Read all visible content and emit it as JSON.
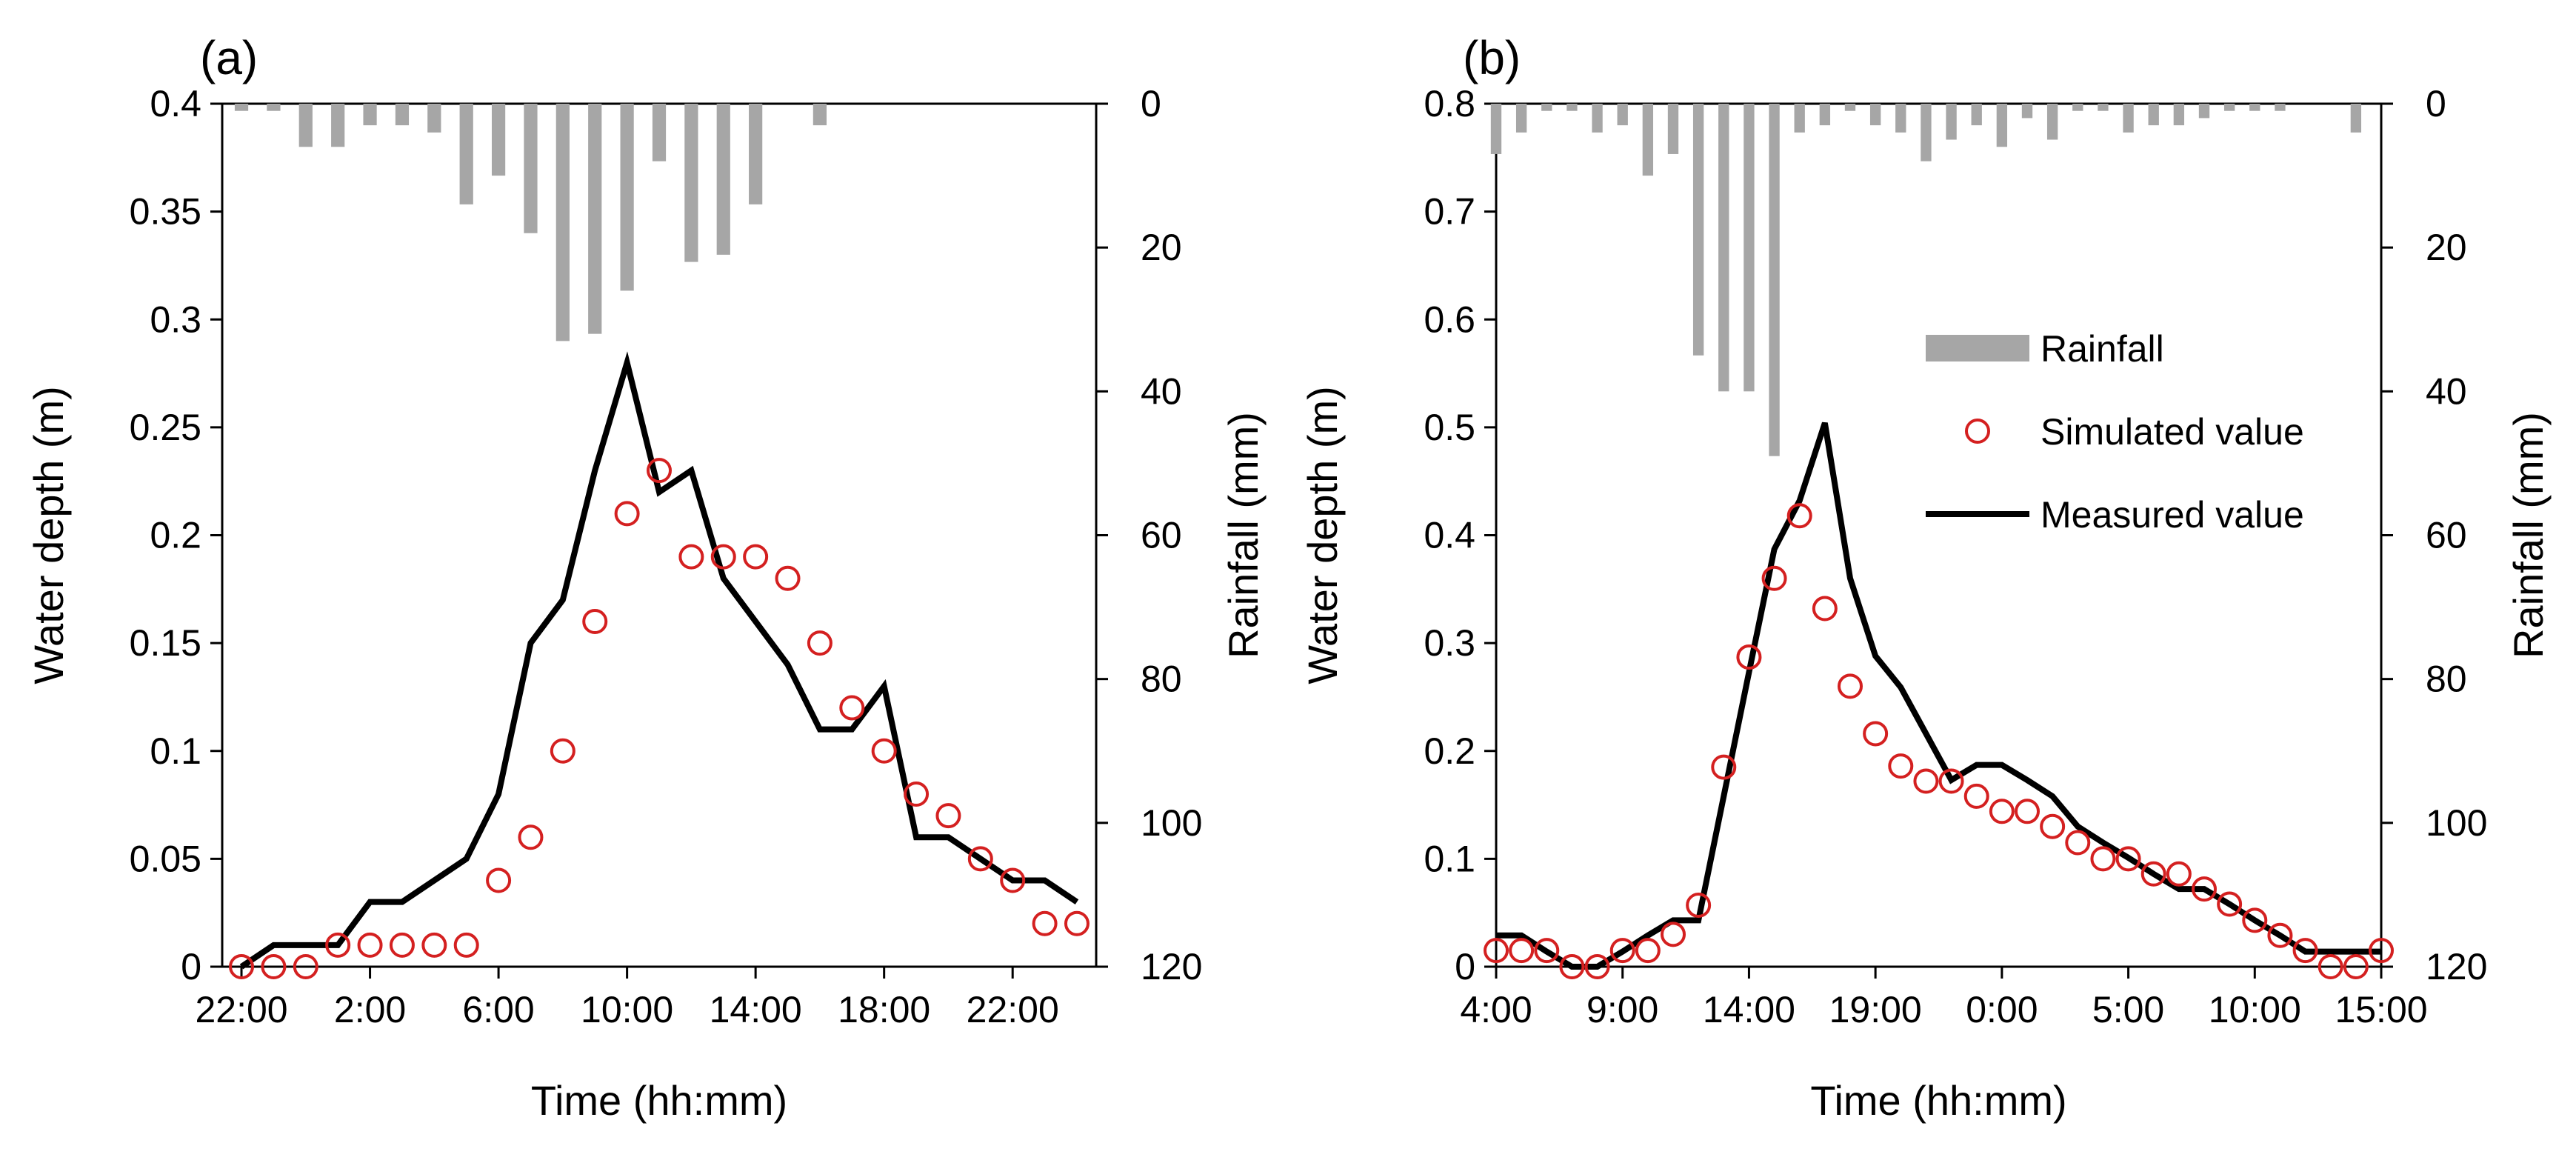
{
  "chart_data": [
    {
      "type": "line",
      "panel_label": "(a)",
      "xlabel": "Time (hh:mm)",
      "ylabel": "Water depth (m)",
      "y2label": "Rainfall (mm)",
      "ylim": [
        0,
        0.4
      ],
      "y2lim": [
        0,
        120
      ],
      "y_ticks": [
        "0",
        "0.05",
        "0.1",
        "0.15",
        "0.2",
        "0.25",
        "0.3",
        "0.35",
        "0.4"
      ],
      "y2_ticks": [
        "0",
        "20",
        "40",
        "60",
        "80",
        "100",
        "120"
      ],
      "x_ticks": [
        "22:00",
        "2:00",
        "6:00",
        "10:00",
        "14:00",
        "18:00",
        "22:00"
      ],
      "x_tick_hours": [
        0,
        4,
        8,
        12,
        16,
        20,
        24
      ],
      "xlim": [
        -0.6,
        26.6
      ],
      "rainfall": {
        "name": "Rainfall",
        "x": [
          0,
          1,
          2,
          3,
          4,
          5,
          6,
          7,
          8,
          9,
          10,
          11,
          12,
          13,
          14,
          15,
          16,
          17,
          18,
          19,
          20,
          21,
          22,
          23,
          24,
          25
        ],
        "values": [
          1,
          1,
          6,
          6,
          3,
          3,
          4,
          14,
          10,
          18,
          33,
          32,
          26,
          8,
          22,
          21,
          14,
          0,
          3,
          0,
          0,
          0,
          0,
          0,
          0,
          0
        ]
      },
      "series": [
        {
          "name": "Simulated value",
          "style": "marker",
          "x": [
            0,
            1,
            2,
            3,
            4,
            5,
            6,
            7,
            8,
            9,
            10,
            11,
            12,
            13,
            14,
            15,
            16,
            17,
            18,
            19,
            20,
            21,
            22,
            23,
            24,
            25,
            26
          ],
          "values": [
            0,
            0,
            0,
            0.01,
            0.01,
            0.01,
            0.01,
            0.01,
            0.04,
            0.06,
            0.1,
            0.16,
            0.21,
            0.23,
            0.19,
            0.19,
            0.19,
            0.18,
            0.15,
            0.12,
            0.1,
            0.08,
            0.07,
            0.05,
            0.04,
            0.02,
            0.02
          ]
        },
        {
          "name": "Measured value",
          "style": "line",
          "x": [
            0,
            1,
            2,
            3,
            4,
            5,
            6,
            7,
            8,
            9,
            10,
            11,
            12,
            13,
            14,
            15,
            16,
            17,
            18,
            19,
            20,
            21,
            22,
            23,
            24,
            25,
            26
          ],
          "values": [
            0,
            0.01,
            0.01,
            0.01,
            0.03,
            0.03,
            0.04,
            0.05,
            0.08,
            0.15,
            0.17,
            0.23,
            0.28,
            0.22,
            0.23,
            0.18,
            0.16,
            0.14,
            0.11,
            0.11,
            0.13,
            0.06,
            0.06,
            0.05,
            0.04,
            0.04,
            0.03
          ]
        }
      ]
    },
    {
      "type": "line",
      "panel_label": "(b)",
      "xlabel": "Time (hh:mm)",
      "ylabel": "Water depth (m)",
      "y2label": "Rainfall (mm)",
      "ylim": [
        0,
        0.8
      ],
      "y2lim": [
        0,
        120
      ],
      "y_ticks": [
        "0",
        "0.1",
        "0.2",
        "0.3",
        "0.4",
        "0.5",
        "0.6",
        "0.7",
        "0.8"
      ],
      "y2_ticks": [
        "0",
        "20",
        "40",
        "60",
        "80",
        "100",
        "120"
      ],
      "x_ticks": [
        "4:00",
        "9:00",
        "14:00",
        "19:00",
        "0:00",
        "5:00",
        "10:00",
        "15:00"
      ],
      "x_tick_hours": [
        0,
        5,
        10,
        15,
        20,
        25,
        30,
        35
      ],
      "xlim": [
        0,
        35
      ],
      "legend": {
        "position": "right",
        "entries": [
          "Rainfall",
          "Simulated value",
          "Measured value"
        ]
      },
      "rainfall": {
        "name": "Rainfall",
        "x": [
          0,
          1,
          2,
          3,
          4,
          5,
          6,
          7,
          8,
          9,
          10,
          11,
          12,
          13,
          14,
          15,
          16,
          17,
          18,
          19,
          20,
          21,
          22,
          23,
          24,
          25,
          26,
          27,
          28,
          29,
          30,
          31,
          32,
          33,
          34
        ],
        "values": [
          7,
          4,
          1,
          1,
          4,
          3,
          10,
          7,
          35,
          40,
          40,
          49,
          4,
          3,
          1,
          3,
          4,
          8,
          5,
          3,
          6,
          2,
          5,
          1,
          1,
          4,
          3,
          3,
          2,
          1,
          1,
          1,
          0,
          0,
          4
        ]
      },
      "series": [
        {
          "name": "Simulated value",
          "style": "marker",
          "x": [
            0,
            1,
            2,
            3,
            4,
            5,
            6,
            7,
            8,
            9,
            10,
            11,
            12,
            13,
            14,
            15,
            16,
            17,
            18,
            19,
            20,
            21,
            22,
            23,
            24,
            25,
            26,
            27,
            28,
            29,
            30,
            31,
            32,
            33,
            34,
            35
          ],
          "values": [
            0.015,
            0.015,
            0.015,
            0,
            0,
            0.015,
            0.015,
            0.03,
            0.057,
            0.185,
            0.287,
            0.36,
            0.418,
            0.332,
            0.26,
            0.216,
            0.186,
            0.172,
            0.172,
            0.158,
            0.144,
            0.144,
            0.13,
            0.115,
            0.1,
            0.1,
            0.086,
            0.086,
            0.072,
            0.058,
            0.043,
            0.029,
            0.015,
            0,
            0,
            0.015
          ]
        },
        {
          "name": "Measured value",
          "style": "line",
          "x": [
            0,
            1,
            2,
            3,
            4,
            5,
            6,
            7,
            8,
            9,
            10,
            11,
            12,
            13,
            14,
            15,
            16,
            17,
            18,
            19,
            20,
            21,
            22,
            23,
            24,
            25,
            26,
            27,
            28,
            29,
            30,
            31,
            32,
            33,
            34,
            35
          ],
          "values": [
            0.029,
            0.029,
            0.014,
            0,
            0,
            0.014,
            0.029,
            0.043,
            0.043,
            0.158,
            0.273,
            0.387,
            0.432,
            0.504,
            0.36,
            0.288,
            0.259,
            0.216,
            0.173,
            0.187,
            0.187,
            0.173,
            0.158,
            0.13,
            0.115,
            0.101,
            0.086,
            0.072,
            0.072,
            0.058,
            0.043,
            0.029,
            0.014,
            0.014,
            0.014,
            0.014
          ]
        }
      ]
    }
  ]
}
